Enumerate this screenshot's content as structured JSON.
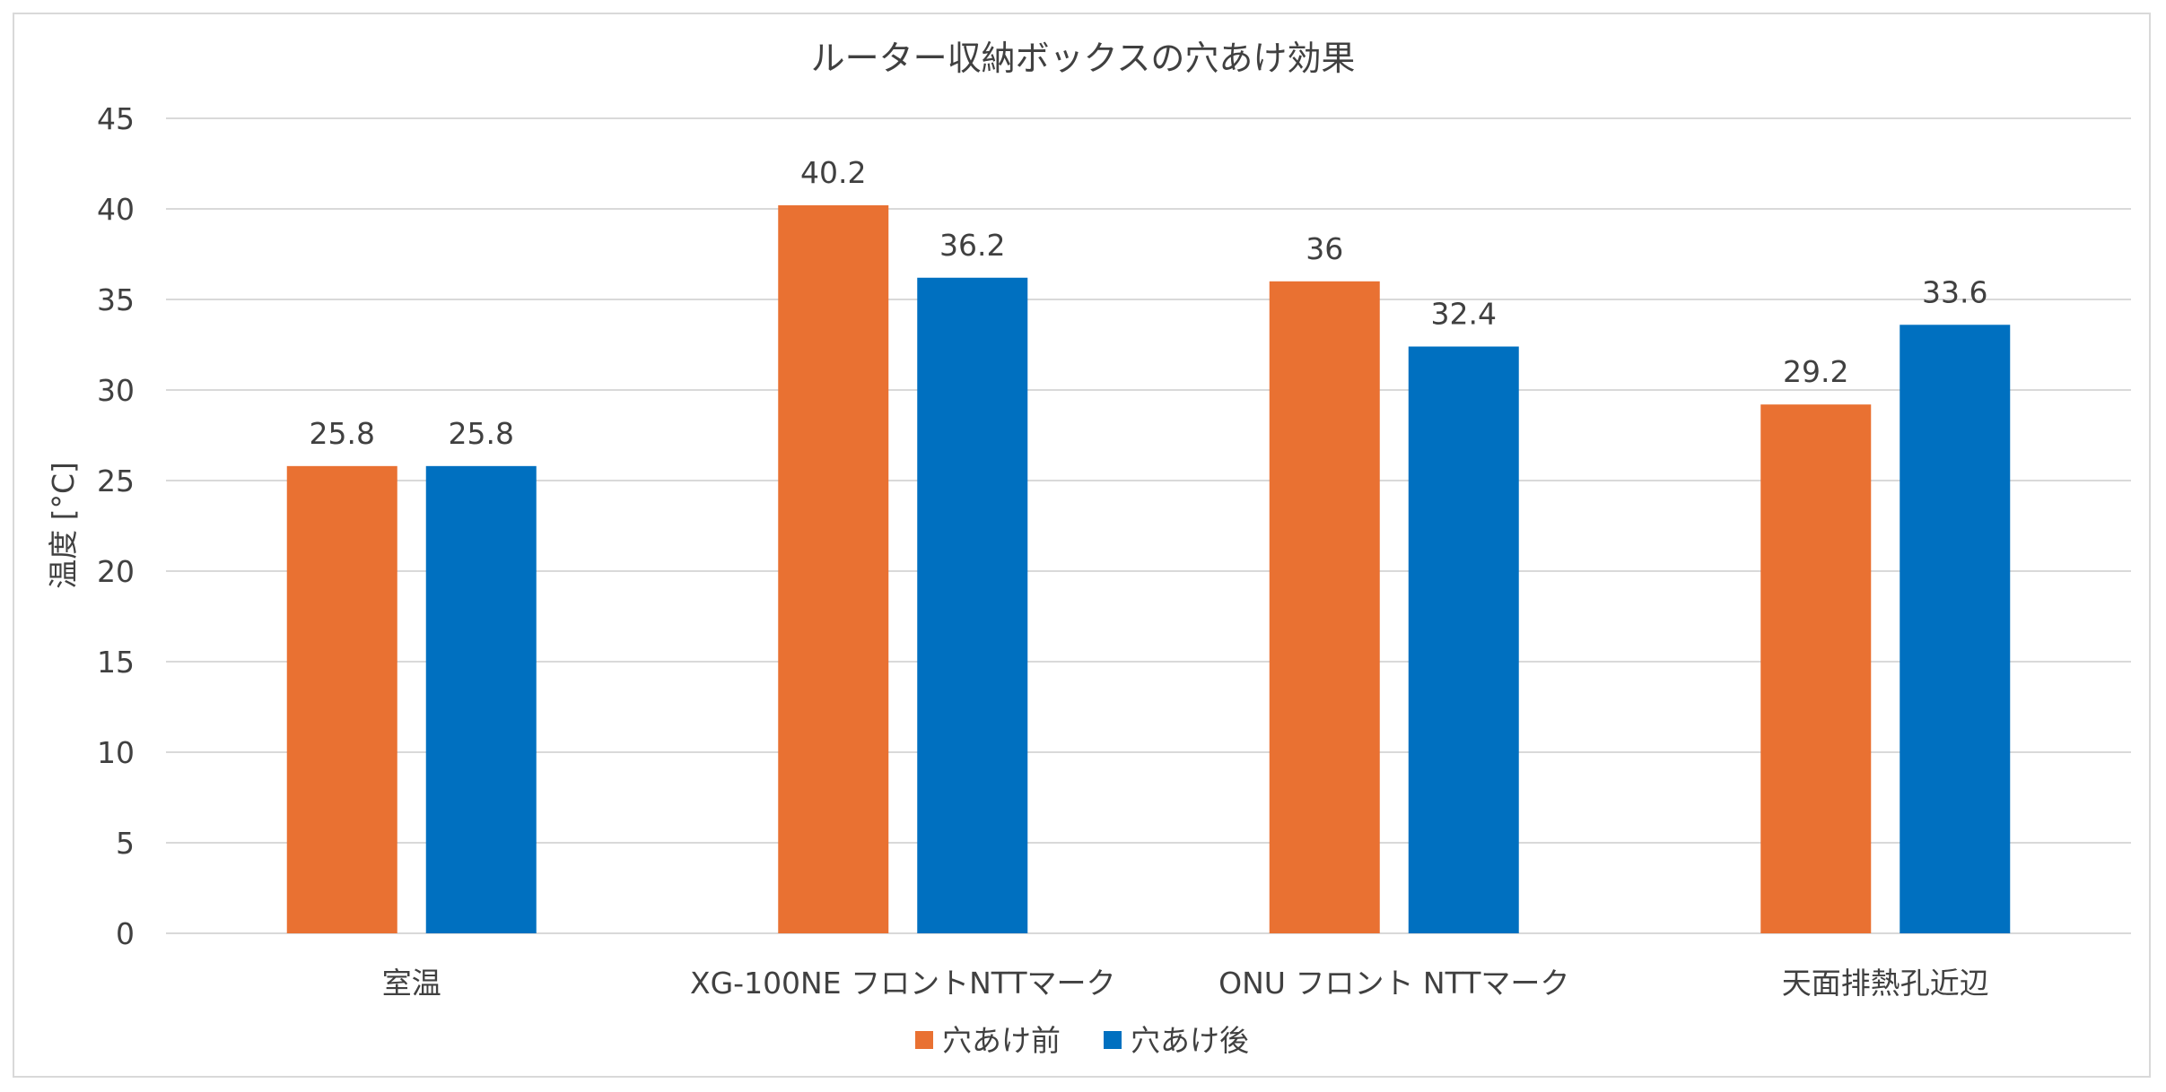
{
  "chart_data": {
    "type": "bar",
    "title": "ルーター収納ボックスの穴あけ効果",
    "xlabel": "",
    "ylabel": "温度 [°C]",
    "ylim": [
      0,
      45
    ],
    "yticks": [
      "0",
      "5",
      "10",
      "15",
      "20",
      "25",
      "30",
      "35",
      "40",
      "45"
    ],
    "grid": true,
    "legend_position": "bottom",
    "categories": [
      "室温",
      "XG-100NE フロントNTTマーク",
      "ONU フロント NTTマーク",
      "天面排熱孔近辺"
    ],
    "series": [
      {
        "name": "穴あけ前",
        "color": "#E97132",
        "values": [
          25.8,
          40.2,
          36,
          29.2
        ],
        "labels": [
          "25.8",
          "40.2",
          "36",
          "29.2"
        ]
      },
      {
        "name": "穴あけ後",
        "color": "#0070C0",
        "values": [
          25.8,
          36.2,
          32.4,
          33.6
        ],
        "labels": [
          "25.8",
          "36.2",
          "32.4",
          "33.6"
        ]
      }
    ]
  }
}
